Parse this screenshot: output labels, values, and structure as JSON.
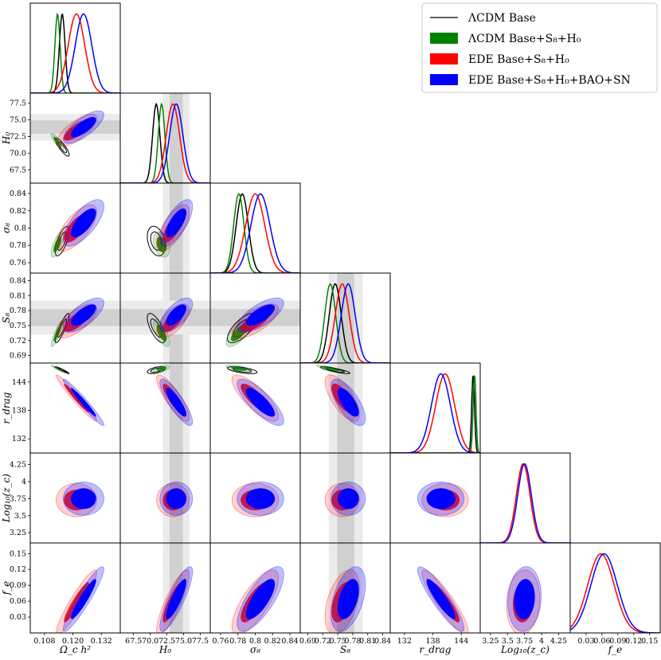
{
  "chart_data": {
    "type": "corner",
    "parameters": [
      {
        "name": "omch2",
        "label": "Ω_c h²",
        "ticks": [
          "0.108",
          "0.120",
          "0.132"
        ],
        "range": [
          0.102,
          0.14
        ]
      },
      {
        "name": "H0",
        "label": "H₀",
        "ticks": [
          "67.5",
          "70.0",
          "72.5",
          "75.0",
          "77.5"
        ],
        "range": [
          65.5,
          79.0
        ]
      },
      {
        "name": "sigma8",
        "label": "σ₈",
        "ticks": [
          "0.76",
          "0.78",
          "0.8",
          "0.82",
          "0.84"
        ],
        "range": [
          0.748,
          0.852
        ]
      },
      {
        "name": "S8",
        "label": "S₈",
        "ticks": [
          "0.69",
          "0.72",
          "0.75",
          "0.78",
          "0.81",
          "0.84"
        ],
        "range": [
          0.675,
          0.855
        ],
        "xticks": [
          "0.69",
          "0.72",
          "0.75",
          "0.78",
          "0.81",
          "0.84"
        ]
      },
      {
        "name": "rdrag",
        "label": "r_drag",
        "ticks": [
          "132",
          "138",
          "144"
        ],
        "range": [
          129,
          148
        ]
      },
      {
        "name": "log10zc",
        "label": "Log₁₀(z_c)",
        "ticks": [
          "3.25",
          "3.5",
          "3.75",
          "4",
          "4.25"
        ],
        "range": [
          3.1,
          4.42
        ]
      },
      {
        "name": "fe",
        "label": "f_e",
        "ticks": [
          "0.03",
          "0.06",
          "0.09",
          "0.12",
          "0.15"
        ],
        "range": [
          0.0,
          0.17
        ]
      }
    ],
    "series": [
      {
        "name": "ΛCDM Base",
        "color": "#000000",
        "style": "line",
        "mean": {
          "omch2": 0.1155,
          "H0": 70.9,
          "sigma8": 0.785,
          "S8": 0.745,
          "rdrag": 146.5
        },
        "sd": {
          "omch2": 0.0012,
          "H0": 0.55,
          "sigma8": 0.007,
          "S8": 0.012,
          "rdrag": 0.3
        }
      },
      {
        "name": "ΛCDM Base+S₈+H₀",
        "color": "#008000",
        "style": "filled",
        "mean": {
          "omch2": 0.1135,
          "H0": 71.7,
          "sigma8": 0.781,
          "S8": 0.735,
          "rdrag": 146.8
        },
        "sd": {
          "omch2": 0.0011,
          "H0": 0.5,
          "sigma8": 0.006,
          "S8": 0.011,
          "rdrag": 0.3
        }
      },
      {
        "name": "EDE Base+S₈+H₀",
        "color": "#ff0000",
        "style": "filled",
        "mean": {
          "omch2": 0.1215,
          "H0": 73.4,
          "sigma8": 0.8,
          "S8": 0.759,
          "rdrag": 140.6,
          "log10zc": 3.73,
          "fe": 0.058
        },
        "sd": {
          "omch2": 0.0035,
          "H0": 1.0,
          "sigma8": 0.011,
          "S8": 0.014,
          "rdrag": 2.0,
          "log10zc": 0.1,
          "fe": 0.025
        }
      },
      {
        "name": "EDE Base+S₈+H₀+BAO+SN",
        "color": "#0000ff",
        "style": "filled",
        "mean": {
          "omch2": 0.1245,
          "H0": 73.9,
          "sigma8": 0.806,
          "S8": 0.771,
          "rdrag": 139.7,
          "log10zc": 3.75,
          "fe": 0.064
        },
        "sd": {
          "omch2": 0.0035,
          "H0": 1.0,
          "sigma8": 0.011,
          "S8": 0.014,
          "rdrag": 2.0,
          "log10zc": 0.1,
          "fe": 0.025
        }
      }
    ],
    "priors": {
      "H0": {
        "mean": 73.9,
        "sd": 1.0
      },
      "S8": {
        "mean": 0.766,
        "sd": 0.017
      }
    }
  }
}
